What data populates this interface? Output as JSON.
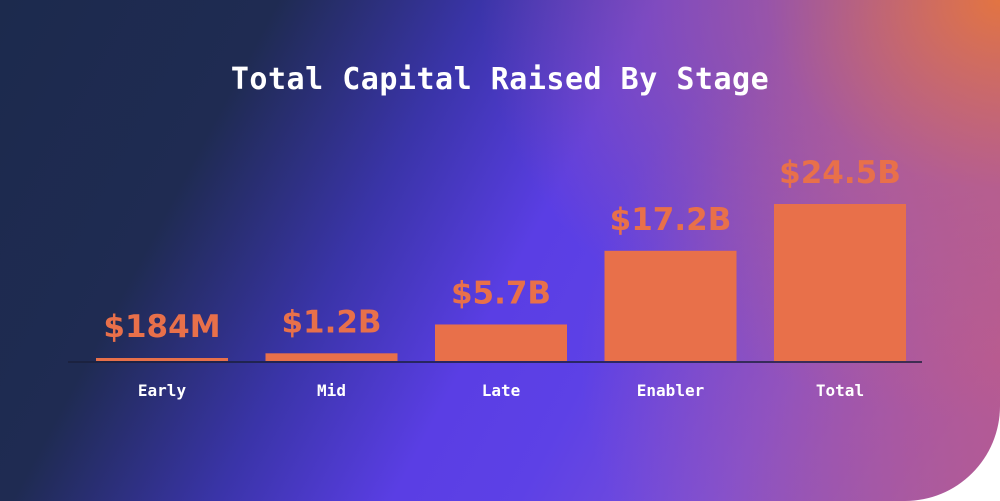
{
  "chart_data": {
    "type": "bar",
    "title": "Total Capital Raised By Stage",
    "categories": [
      "Early",
      "Mid",
      "Late",
      "Enabler",
      "Total"
    ],
    "values": [
      0.184,
      1.2,
      5.7,
      17.2,
      24.5
    ],
    "value_labels": [
      "$184M",
      "$1.2B",
      "$5.7B",
      "$17.2B",
      "$24.5B"
    ],
    "unit": "USD billions",
    "ylim": [
      0,
      24.5
    ],
    "grid": false,
    "legend": "none",
    "colors": {
      "bar": "#e8704a",
      "value_label": "#e8704a",
      "title": "#ffffff",
      "category_label": "#ffffff"
    }
  }
}
